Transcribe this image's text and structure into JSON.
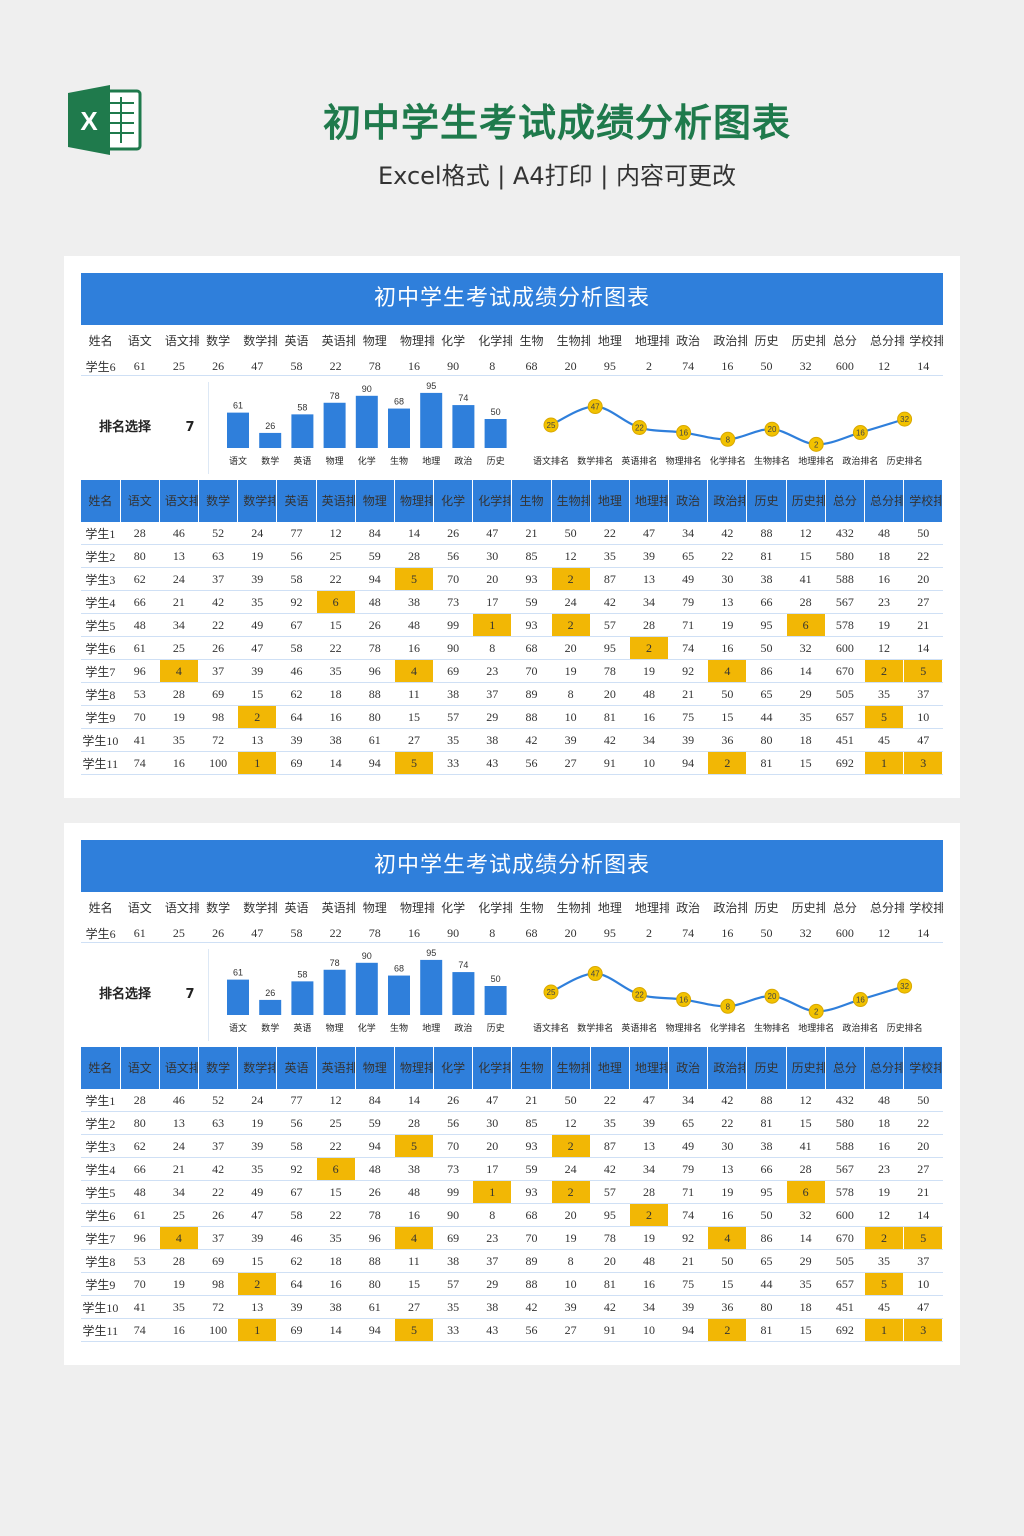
{
  "page": {
    "title": "初中学生考试成绩分析图表",
    "subtitle": "Excel格式 | A4打印 | 内容可更改",
    "icon_letter": "X",
    "colors": {
      "brand_green": "#1f7a4c",
      "header_blue": "#2f7fdb",
      "highlight": "#f2b705",
      "dot": "#f2c200"
    }
  },
  "sheet": {
    "title": "初中学生考试成绩分析图表",
    "headers": [
      "姓名",
      "语文",
      "语文排名",
      "数学",
      "数学排名",
      "英语",
      "英语排名",
      "物理",
      "物理排名",
      "化学",
      "化学排名",
      "生物",
      "生物排名",
      "地理",
      "地理排名",
      "政治",
      "政治排名",
      "历史",
      "历史排名",
      "总分",
      "总分排名",
      "学校排名"
    ],
    "selected_row": [
      "学生6",
      "61",
      "25",
      "26",
      "47",
      "58",
      "22",
      "78",
      "16",
      "90",
      "8",
      "68",
      "20",
      "95",
      "2",
      "74",
      "16",
      "50",
      "32",
      "600",
      "12",
      "14"
    ],
    "rank_select_label": "排名选择",
    "rank_select_value": "7",
    "rows": [
      [
        "学生1",
        "28",
        "46",
        "52",
        "24",
        "77",
        "12",
        "84",
        "14",
        "26",
        "47",
        "21",
        "50",
        "22",
        "47",
        "34",
        "42",
        "88",
        "12",
        "432",
        "48",
        "50"
      ],
      [
        "学生2",
        "80",
        "13",
        "63",
        "19",
        "56",
        "25",
        "59",
        "28",
        "56",
        "30",
        "85",
        "12",
        "35",
        "39",
        "65",
        "22",
        "81",
        "15",
        "580",
        "18",
        "22"
      ],
      [
        "学生3",
        "62",
        "24",
        "37",
        "39",
        "58",
        "22",
        "94",
        "5",
        "70",
        "20",
        "93",
        "2",
        "87",
        "13",
        "49",
        "30",
        "38",
        "41",
        "588",
        "16",
        "20"
      ],
      [
        "学生4",
        "66",
        "21",
        "42",
        "35",
        "92",
        "6",
        "48",
        "38",
        "73",
        "17",
        "59",
        "24",
        "42",
        "34",
        "79",
        "13",
        "66",
        "28",
        "567",
        "23",
        "27"
      ],
      [
        "学生5",
        "48",
        "34",
        "22",
        "49",
        "67",
        "15",
        "26",
        "48",
        "99",
        "1",
        "93",
        "2",
        "57",
        "28",
        "71",
        "19",
        "95",
        "6",
        "578",
        "19",
        "21"
      ],
      [
        "学生6",
        "61",
        "25",
        "26",
        "47",
        "58",
        "22",
        "78",
        "16",
        "90",
        "8",
        "68",
        "20",
        "95",
        "2",
        "74",
        "16",
        "50",
        "32",
        "600",
        "12",
        "14"
      ],
      [
        "学生7",
        "96",
        "4",
        "37",
        "39",
        "46",
        "35",
        "96",
        "4",
        "69",
        "23",
        "70",
        "19",
        "78",
        "19",
        "92",
        "4",
        "86",
        "14",
        "670",
        "2",
        "5"
      ],
      [
        "学生8",
        "53",
        "28",
        "69",
        "15",
        "62",
        "18",
        "88",
        "11",
        "38",
        "37",
        "89",
        "8",
        "20",
        "48",
        "21",
        "50",
        "65",
        "29",
        "505",
        "35",
        "37"
      ],
      [
        "学生9",
        "70",
        "19",
        "98",
        "2",
        "64",
        "16",
        "80",
        "15",
        "57",
        "29",
        "88",
        "10",
        "81",
        "16",
        "75",
        "15",
        "44",
        "35",
        "657",
        "5",
        "10"
      ],
      [
        "学生10",
        "41",
        "35",
        "72",
        "13",
        "39",
        "38",
        "61",
        "27",
        "35",
        "38",
        "42",
        "39",
        "42",
        "34",
        "39",
        "36",
        "80",
        "18",
        "451",
        "45",
        "47"
      ],
      [
        "学生11",
        "74",
        "16",
        "100",
        "1",
        "69",
        "14",
        "94",
        "5",
        "33",
        "43",
        "56",
        "27",
        "91",
        "10",
        "94",
        "2",
        "81",
        "15",
        "692",
        "1",
        "3"
      ]
    ],
    "highlight_cells": [
      [
        2,
        8
      ],
      [
        2,
        12
      ],
      [
        3,
        6
      ],
      [
        4,
        10
      ],
      [
        4,
        12
      ],
      [
        4,
        18
      ],
      [
        5,
        14
      ],
      [
        6,
        2
      ],
      [
        6,
        8
      ],
      [
        6,
        16
      ],
      [
        6,
        20
      ],
      [
        6,
        21
      ],
      [
        8,
        4
      ],
      [
        8,
        20
      ],
      [
        10,
        4
      ],
      [
        10,
        8
      ],
      [
        10,
        16
      ],
      [
        10,
        20
      ],
      [
        10,
        21
      ]
    ]
  },
  "chart_data": [
    {
      "type": "bar",
      "categories": [
        "语文",
        "数学",
        "英语",
        "物理",
        "化学",
        "生物",
        "地理",
        "政治",
        "历史"
      ],
      "values": [
        61,
        26,
        58,
        78,
        90,
        68,
        95,
        74,
        50
      ],
      "ylim": [
        0,
        100
      ]
    },
    {
      "type": "line",
      "categories": [
        "语文排名",
        "数学排名",
        "英语排名",
        "物理排名",
        "化学排名",
        "生物排名",
        "地理排名",
        "政治排名",
        "历史排名"
      ],
      "values": [
        25,
        47,
        22,
        16,
        8,
        20,
        2,
        16,
        32
      ],
      "ylim": [
        0,
        50
      ]
    }
  ]
}
